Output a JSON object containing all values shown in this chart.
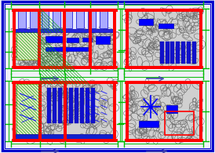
{
  "bg_color": "#f0f0f8",
  "border_color": "#0000cc",
  "red": "#ff0000",
  "green": "#00bb00",
  "blue": "#0000ff",
  "dark_blue": "#0000aa",
  "stone_bg": "#c8c8c8",
  "white_bg": "#ffffff",
  "arrow_color": "#4444aa"
}
